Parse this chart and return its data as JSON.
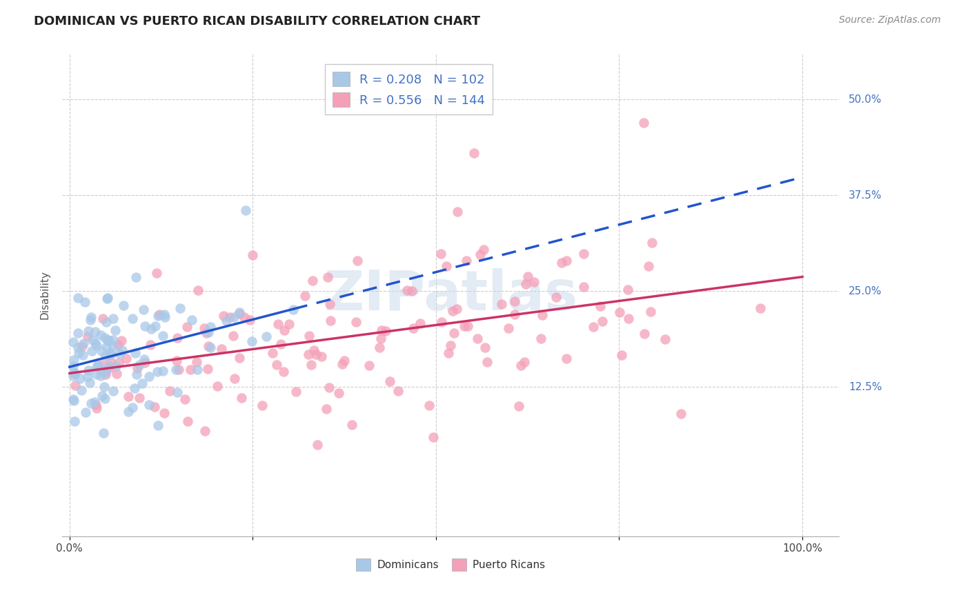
{
  "title": "DOMINICAN VS PUERTO RICAN DISABILITY CORRELATION CHART",
  "source": "Source: ZipAtlas.com",
  "ylabel": "Disability",
  "dominican_color": "#a8c8e8",
  "puerto_rican_color": "#f4a0b8",
  "dominican_line_color": "#2255cc",
  "puerto_rican_line_color": "#cc3366",
  "dominican_R": 0.208,
  "dominican_N": 102,
  "puerto_rican_R": 0.556,
  "puerto_rican_N": 144,
  "label_color": "#4472c4",
  "background_color": "#ffffff",
  "grid_color": "#cccccc",
  "ytick_vals": [
    0.125,
    0.25,
    0.375,
    0.5
  ],
  "ytick_labels": [
    "12.5%",
    "25.0%",
    "37.5%",
    "50.0%"
  ],
  "ylim": [
    -0.07,
    0.56
  ],
  "xlim": [
    -0.01,
    1.05
  ]
}
